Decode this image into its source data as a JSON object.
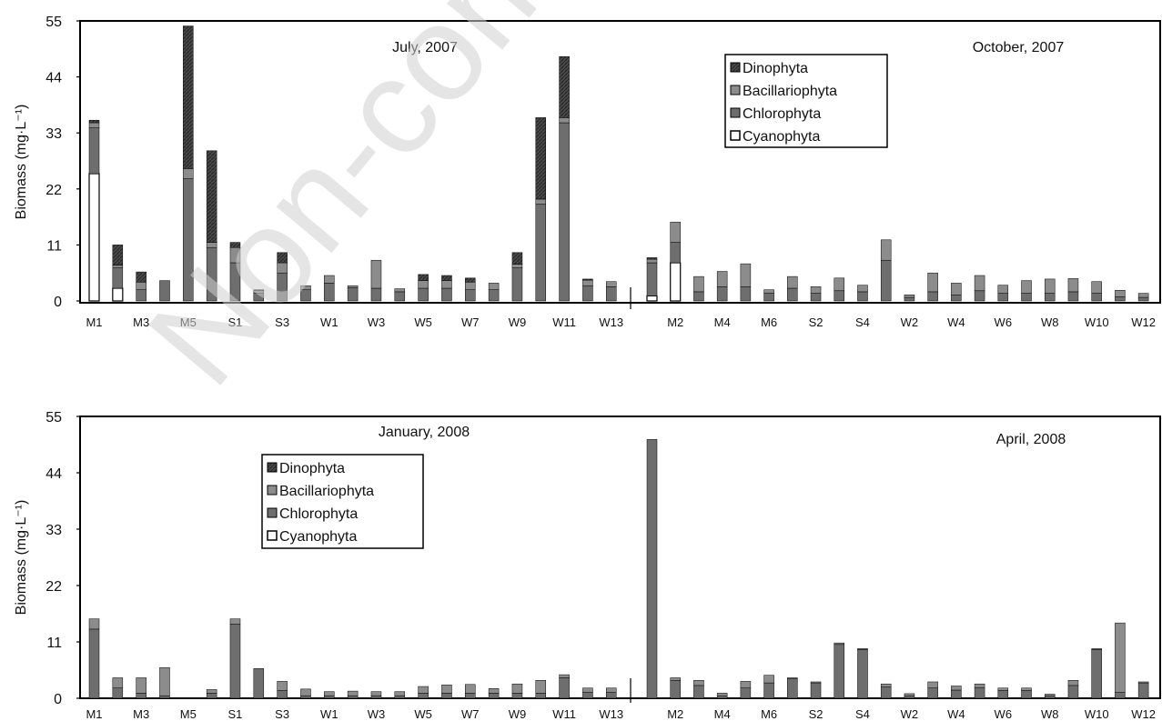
{
  "colors": {
    "Dinophyta": "#3c3c3c",
    "Bacillariophyta": "#8c8c8c",
    "Chlorophyta": "#6e6e6e",
    "Cyanophyta": "#ffffff"
  },
  "watermark": "Non-com",
  "chart_data": [
    {
      "type": "bar",
      "stacked": true,
      "ylabel": "Biomass (mg·L⁻¹)",
      "ylim": [
        0,
        55
      ],
      "yticks": [
        0,
        11,
        22,
        33,
        44,
        55
      ],
      "grid": false,
      "legend": {
        "position": "top-center",
        "entries": [
          "Dinophyta",
          "Bacillariophyta",
          "Chlorophyta",
          "Cyanophyta"
        ]
      },
      "panels": [
        {
          "title": "July, 2007",
          "categories": [
            "M1",
            "M2",
            "M3",
            "M4",
            "M5",
            "M6",
            "S1",
            "S2",
            "S3",
            "S4",
            "W1",
            "W2",
            "W3",
            "W4",
            "W5",
            "W6",
            "W7",
            "W8",
            "W9",
            "W10",
            "W11",
            "W12",
            "W13"
          ],
          "tick_labels": [
            "M1",
            "M3",
            "M5",
            "S1",
            "S3",
            "W1",
            "W3",
            "W5",
            "W7",
            "W9",
            "W11",
            "W13"
          ],
          "series": [
            {
              "name": "Cyanophyta",
              "values": [
                25,
                2.5,
                0,
                0,
                0,
                0,
                0,
                0,
                0,
                0,
                0,
                0,
                0,
                0,
                0,
                0,
                0,
                0,
                0,
                0,
                0,
                0,
                0
              ]
            },
            {
              "name": "Chlorophyta",
              "values": [
                9,
                4,
                2.2,
                4,
                24,
                10.5,
                7.5,
                1.5,
                5.5,
                2.2,
                3.5,
                2.6,
                2.5,
                1.8,
                2.5,
                2.5,
                2.2,
                2.2,
                6.5,
                19,
                35,
                3,
                2.8
              ]
            },
            {
              "name": "Bacillariophyta",
              "values": [
                1,
                0.5,
                1.5,
                0,
                2,
                1,
                3,
                0.5,
                2,
                0.8,
                1.5,
                0.4,
                5.5,
                0.6,
                1.5,
                1.5,
                1.5,
                1.3,
                0.7,
                1,
                1,
                1.1,
                1
              ]
            },
            {
              "name": "Dinophyta",
              "values": [
                0.5,
                4,
                2,
                0,
                28,
                18,
                1,
                0.2,
                2,
                0,
                0,
                0,
                0,
                0,
                1.2,
                1,
                0.8,
                0,
                2.3,
                16,
                12,
                0.2,
                0
              ]
            }
          ]
        },
        {
          "title": "October, 2007",
          "categories": [
            "M1",
            "M2",
            "M3",
            "M4",
            "M5",
            "M6",
            "S1",
            "S2",
            "S3",
            "S4",
            "W1",
            "W2",
            "W3",
            "W4",
            "W5",
            "W6",
            "W7",
            "W8",
            "W9",
            "W10",
            "W11",
            "W12"
          ],
          "tick_labels": [
            "M2",
            "M4",
            "M6",
            "S2",
            "S4",
            "W2",
            "W4",
            "W6",
            "W8",
            "W10",
            "W12"
          ],
          "series": [
            {
              "name": "Cyanophyta",
              "values": [
                1,
                7.5,
                0,
                0,
                0,
                0,
                0,
                0,
                0,
                0,
                0,
                0,
                0,
                0,
                0,
                0,
                0,
                0,
                0,
                0,
                0,
                0
              ]
            },
            {
              "name": "Chlorophyta",
              "values": [
                6.5,
                4,
                1.8,
                2.8,
                2.8,
                1.5,
                2.5,
                1.5,
                2,
                1.8,
                8,
                0.7,
                1.8,
                1.2,
                2,
                1.5,
                1.5,
                1.5,
                1.8,
                1.5,
                0.8,
                0.7
              ]
            },
            {
              "name": "Bacillariophyta",
              "values": [
                0.7,
                4,
                3,
                3,
                4.5,
                0.7,
                2.3,
                1.3,
                2.5,
                1.3,
                4,
                0.5,
                3.7,
                2.3,
                3,
                1.6,
                2.5,
                2.8,
                2.6,
                2.3,
                1.3,
                0.8
              ]
            },
            {
              "name": "Dinophyta",
              "values": [
                0.3,
                0,
                0,
                0,
                0,
                0,
                0,
                0,
                0,
                0,
                0,
                0,
                0,
                0,
                0,
                0,
                0,
                0,
                0,
                0,
                0,
                0
              ]
            }
          ]
        }
      ]
    },
    {
      "type": "bar",
      "stacked": true,
      "ylabel": "Biomass (mg·L⁻¹)",
      "ylim": [
        0,
        55
      ],
      "yticks": [
        0,
        11,
        22,
        33,
        44,
        55
      ],
      "grid": false,
      "legend": {
        "position": "top-left",
        "entries": [
          "Dinophyta",
          "Bacillariophyta",
          "Chlorophyta",
          "Cyanophyta"
        ]
      },
      "panels": [
        {
          "title": "January, 2008",
          "categories": [
            "M1",
            "M2",
            "M3",
            "M4",
            "M5",
            "M6",
            "S1",
            "S2",
            "S3",
            "S4",
            "W1",
            "W2",
            "W3",
            "W4",
            "W5",
            "W6",
            "W7",
            "W8",
            "W9",
            "W10",
            "W11",
            "W12",
            "W13"
          ],
          "tick_labels": [
            "M1",
            "M3",
            "M5",
            "S1",
            "S3",
            "W1",
            "W3",
            "W5",
            "W7",
            "W9",
            "W11",
            "W13"
          ],
          "series": [
            {
              "name": "Cyanophyta",
              "values": [
                0,
                0,
                0,
                0,
                0,
                0,
                0,
                0,
                0,
                0,
                0,
                0,
                0,
                0,
                0,
                0,
                0,
                0,
                0,
                0,
                0,
                0,
                0
              ]
            },
            {
              "name": "Chlorophyta",
              "values": [
                13.5,
                2,
                1,
                0.5,
                0,
                1,
                14.5,
                5.8,
                1.5,
                0.5,
                0.5,
                0.5,
                0.5,
                0.5,
                1,
                1,
                1,
                1,
                1,
                1,
                4,
                1.2,
                1.2
              ]
            },
            {
              "name": "Bacillariophyta",
              "values": [
                2,
                2,
                3,
                5.5,
                0,
                0.7,
                1,
                0,
                1.8,
                1.3,
                0.8,
                0.9,
                0.8,
                0.8,
                1.3,
                1.6,
                1.7,
                0.9,
                1.8,
                2.5,
                0.6,
                0.8,
                0.8
              ]
            },
            {
              "name": "Dinophyta",
              "values": [
                0,
                0,
                0,
                0,
                0,
                0,
                0,
                0,
                0,
                0,
                0,
                0,
                0,
                0,
                0,
                0,
                0,
                0,
                0,
                0,
                0,
                0,
                0
              ]
            }
          ]
        },
        {
          "title": "April, 2008",
          "categories": [
            "M1",
            "M2",
            "M3",
            "M4",
            "M5",
            "M6",
            "S1",
            "S2",
            "S3",
            "S4",
            "W1",
            "W2",
            "W3",
            "W4",
            "W5",
            "W6",
            "W7",
            "W8",
            "W9",
            "W10",
            "W11",
            "W12"
          ],
          "tick_labels": [
            "M2",
            "M4",
            "M6",
            "S2",
            "S4",
            "W2",
            "W4",
            "W6",
            "W8",
            "W10",
            "W12"
          ],
          "series": [
            {
              "name": "Cyanophyta",
              "values": [
                0,
                0,
                0,
                0,
                0,
                0,
                0,
                0,
                0,
                0,
                0,
                0,
                0,
                0,
                0,
                0,
                0,
                0,
                0,
                0,
                0,
                0
              ]
            },
            {
              "name": "Chlorophyta",
              "values": [
                50.5,
                3.5,
                2.5,
                0.5,
                2,
                3,
                3.8,
                3,
                10.5,
                9.5,
                2.2,
                0.5,
                2,
                1.6,
                2.1,
                1.5,
                1.5,
                0.5,
                2.5,
                9.5,
                1.2,
                3
              ]
            },
            {
              "name": "Bacillariophyta",
              "values": [
                0,
                0.5,
                1,
                0.5,
                1.3,
                1.5,
                0.2,
                0.2,
                0.3,
                0.2,
                0.6,
                0.4,
                1.2,
                0.8,
                0.7,
                0.5,
                0.5,
                0.3,
                1,
                0.2,
                13.5,
                0.2
              ]
            },
            {
              "name": "Dinophyta",
              "values": [
                0,
                0,
                0,
                0,
                0,
                0,
                0,
                0,
                0,
                0,
                0,
                0,
                0,
                0,
                0,
                0,
                0,
                0,
                0,
                0,
                0,
                0
              ]
            }
          ]
        }
      ]
    }
  ]
}
